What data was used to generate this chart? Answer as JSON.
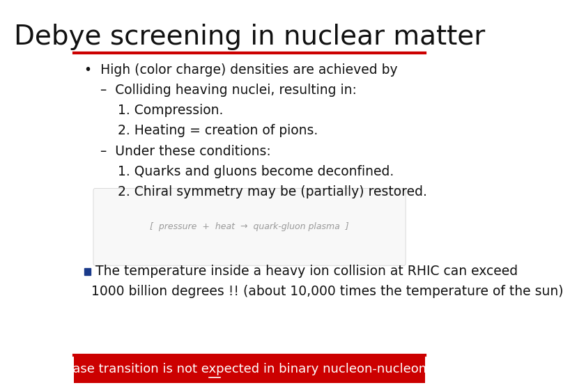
{
  "title": "Debye screening in nuclear matter",
  "title_fontsize": 28,
  "bg_color": "#ffffff",
  "title_underline_color": "#cc0000",
  "bullet_lines": [
    {
      "indent": 0,
      "text": "•  High (color charge) densities are achieved by"
    },
    {
      "indent": 1,
      "text": "–  Colliding heaving nuclei, resulting in:"
    },
    {
      "indent": 2,
      "text": "1. Compression."
    },
    {
      "indent": 2,
      "text": "2. Heating = creation of pions."
    },
    {
      "indent": 1,
      "text": "–  Under these conditions:"
    },
    {
      "indent": 2,
      "text": "1. Quarks and gluons become deconfined."
    },
    {
      "indent": 2,
      "text": "2. Chiral symmetry may be (partially) restored."
    }
  ],
  "square_bullet_color": "#1a3a8a",
  "rhic_line1": "The temperature inside a heavy ion collision at RHIC can exceed",
  "rhic_line2": "1000 billion degrees !! (about 10,000 times the temperature of the sun)",
  "note_text": "Note: a phase transition is ",
  "note_underline": "not",
  "note_text2": " expected in binary nucleon-nucleon collisions.",
  "note_bg": "#cc0000",
  "note_text_color": "#ffffff",
  "body_fontsize": 13.5,
  "note_fontsize": 13
}
